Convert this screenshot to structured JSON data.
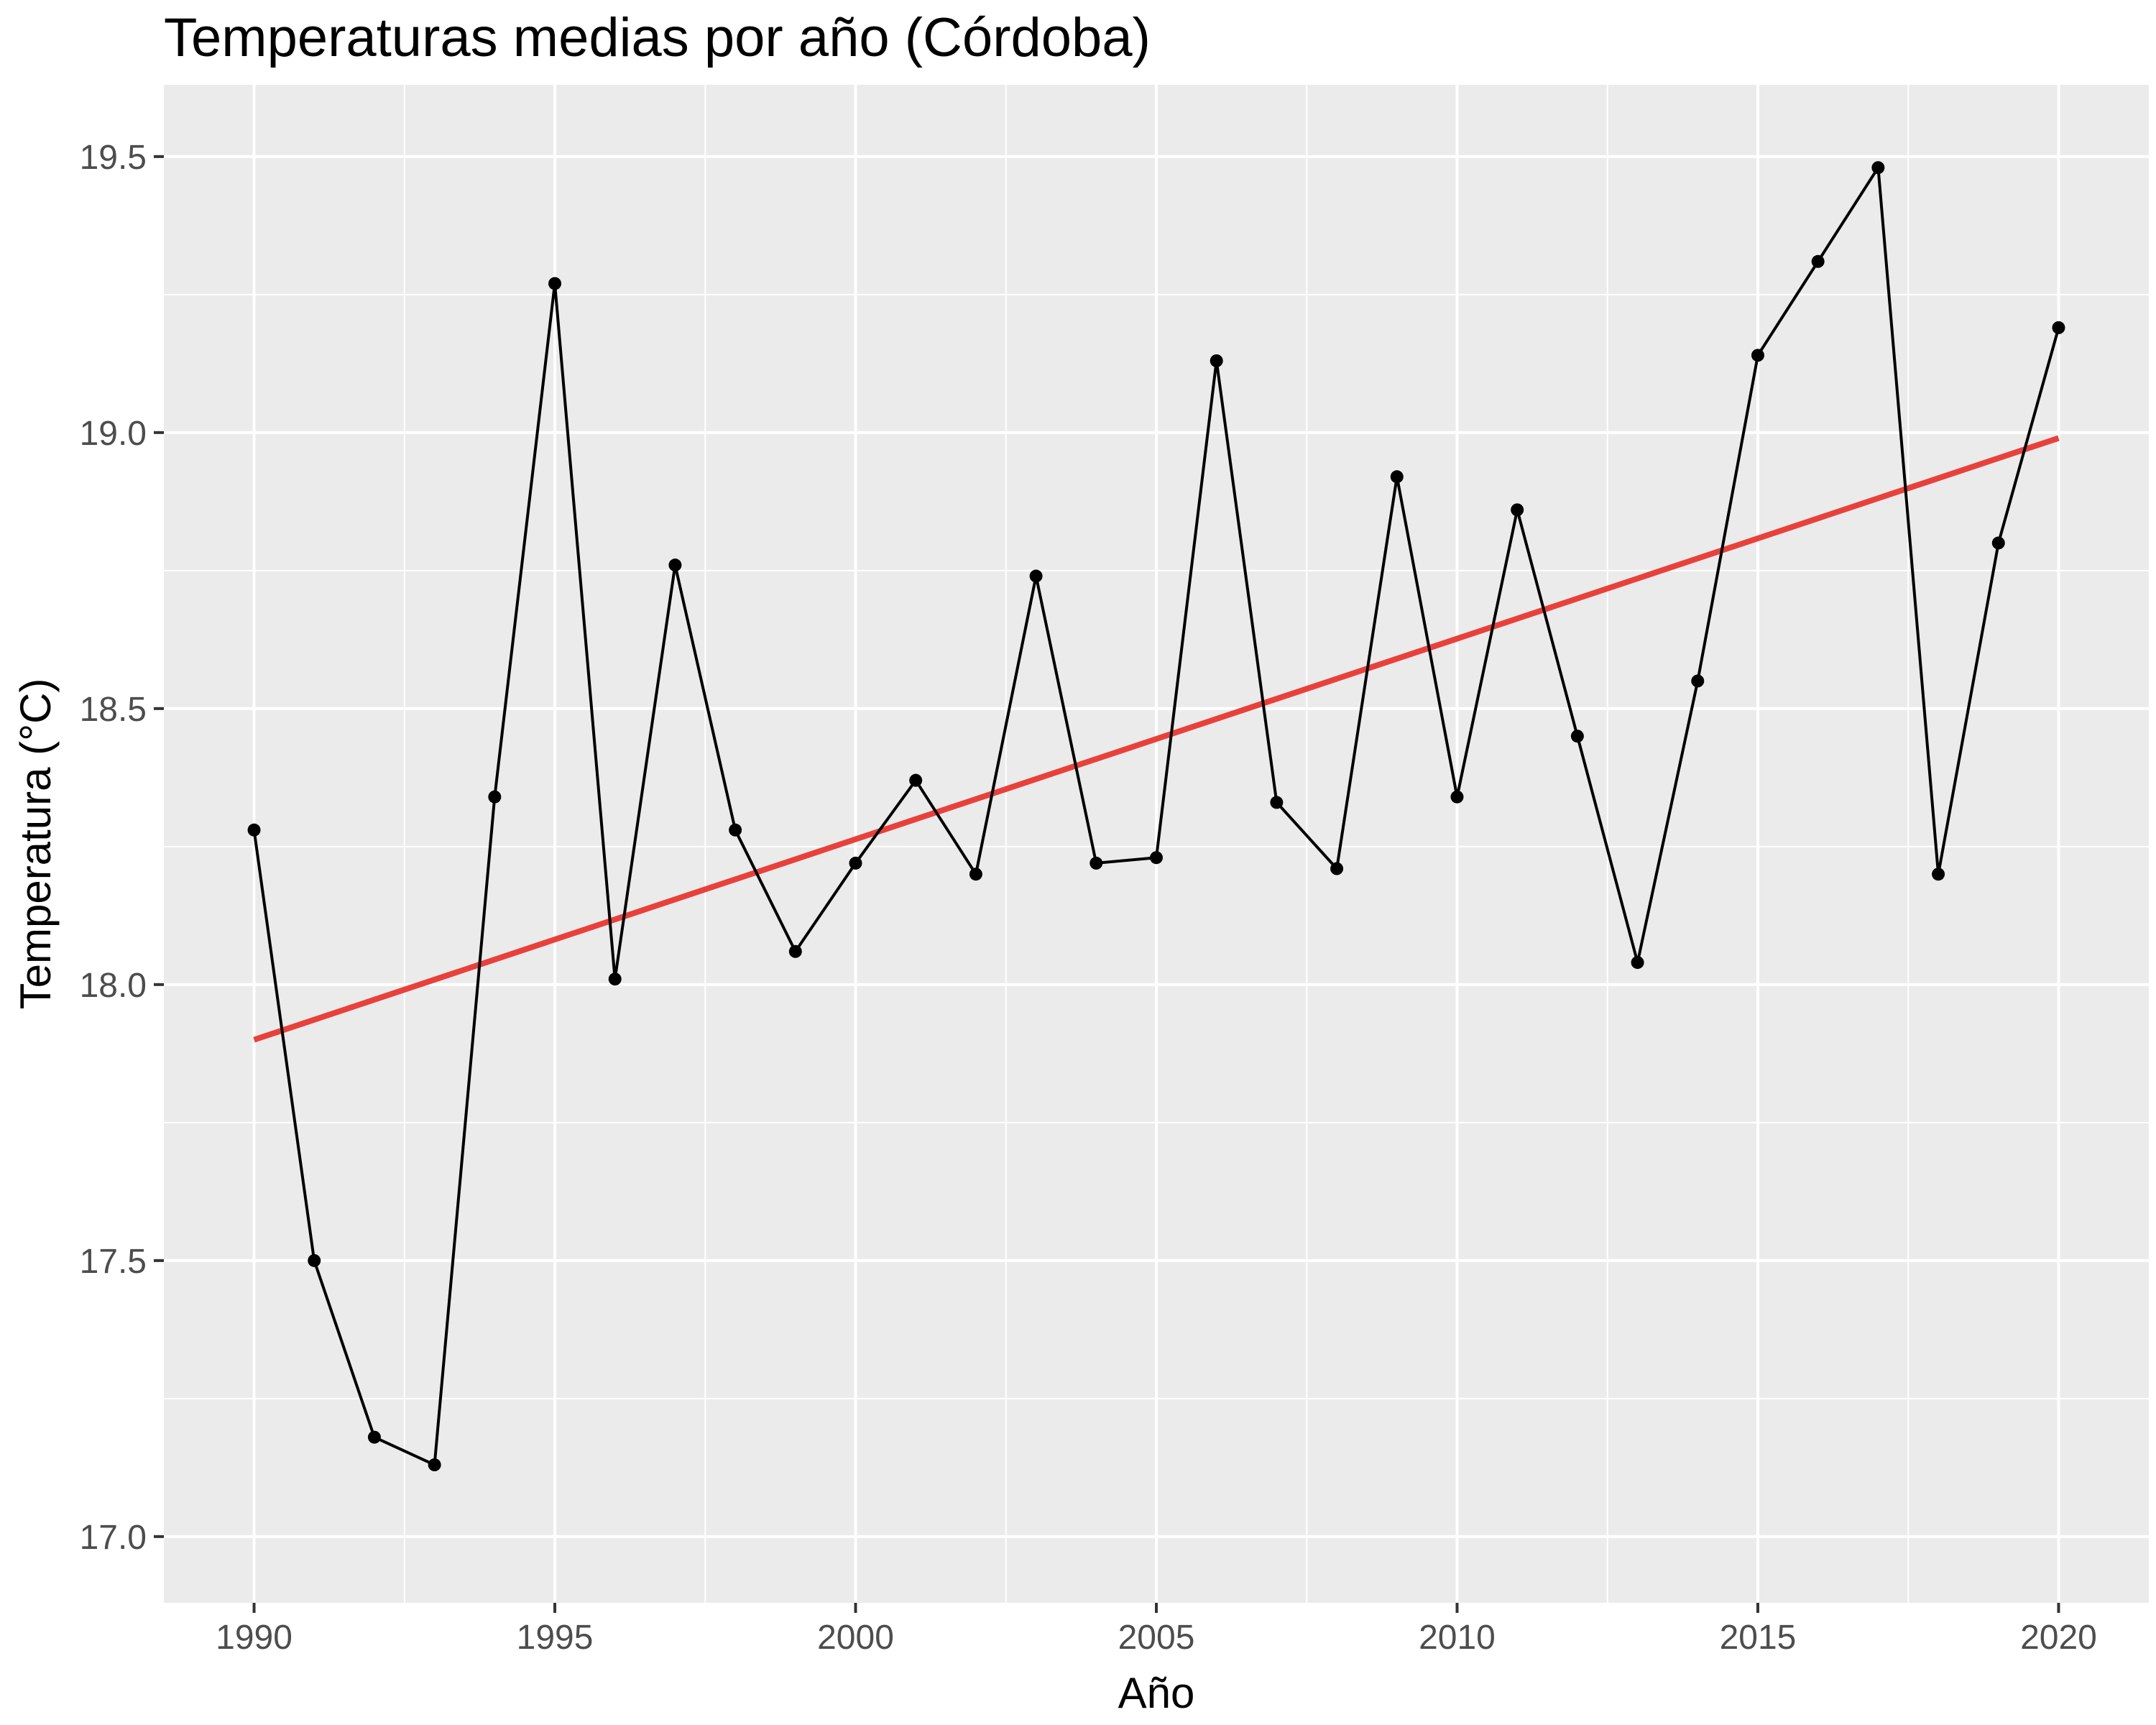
{
  "chart_data": {
    "type": "line",
    "title": "Temperaturas medias por año (Córdoba)",
    "xlabel": "Año",
    "ylabel": "Temperatura (°C)",
    "xlim": [
      1988.5,
      2021.5
    ],
    "ylim": [
      16.88,
      19.63
    ],
    "x_ticks": [
      1990,
      1995,
      2000,
      2005,
      2010,
      2015,
      2020
    ],
    "x_minor_ticks": [
      1992.5,
      1997.5,
      2002.5,
      2007.5,
      2012.5,
      2017.5
    ],
    "y_ticks": [
      17.0,
      17.5,
      18.0,
      18.5,
      19.0,
      19.5
    ],
    "y_tick_labels": [
      "17.0",
      "17.5",
      "18.0",
      "18.5",
      "19.0",
      "19.5"
    ],
    "y_minor_ticks": [
      17.25,
      17.75,
      18.25,
      18.75,
      19.25
    ],
    "grid": true,
    "legend": "none",
    "colors": {
      "panel": "#ebebeb",
      "grid": "#ffffff",
      "series": "#000000",
      "trend": "#e8413c"
    },
    "series": [
      {
        "x": [
          1990,
          1991,
          1992,
          1993,
          1994,
          1995,
          1996,
          1997,
          1998,
          1999,
          2000,
          2001,
          2002,
          2003,
          2004,
          2005,
          2006,
          2007,
          2008,
          2009,
          2010,
          2011,
          2012,
          2013,
          2014,
          2015,
          2016,
          2017,
          2018,
          2019,
          2020
        ],
        "values": [
          18.28,
          17.5,
          17.18,
          17.13,
          18.34,
          19.27,
          18.01,
          18.76,
          18.28,
          18.06,
          18.22,
          18.37,
          18.2,
          18.74,
          18.22,
          18.23,
          19.13,
          18.33,
          18.21,
          18.92,
          18.34,
          18.86,
          18.45,
          18.04,
          18.55,
          19.14,
          19.31,
          19.48,
          18.2,
          18.8,
          19.19
        ]
      }
    ],
    "trend_line": {
      "x": [
        1990,
        2020
      ],
      "values": [
        17.9,
        18.99
      ]
    }
  }
}
